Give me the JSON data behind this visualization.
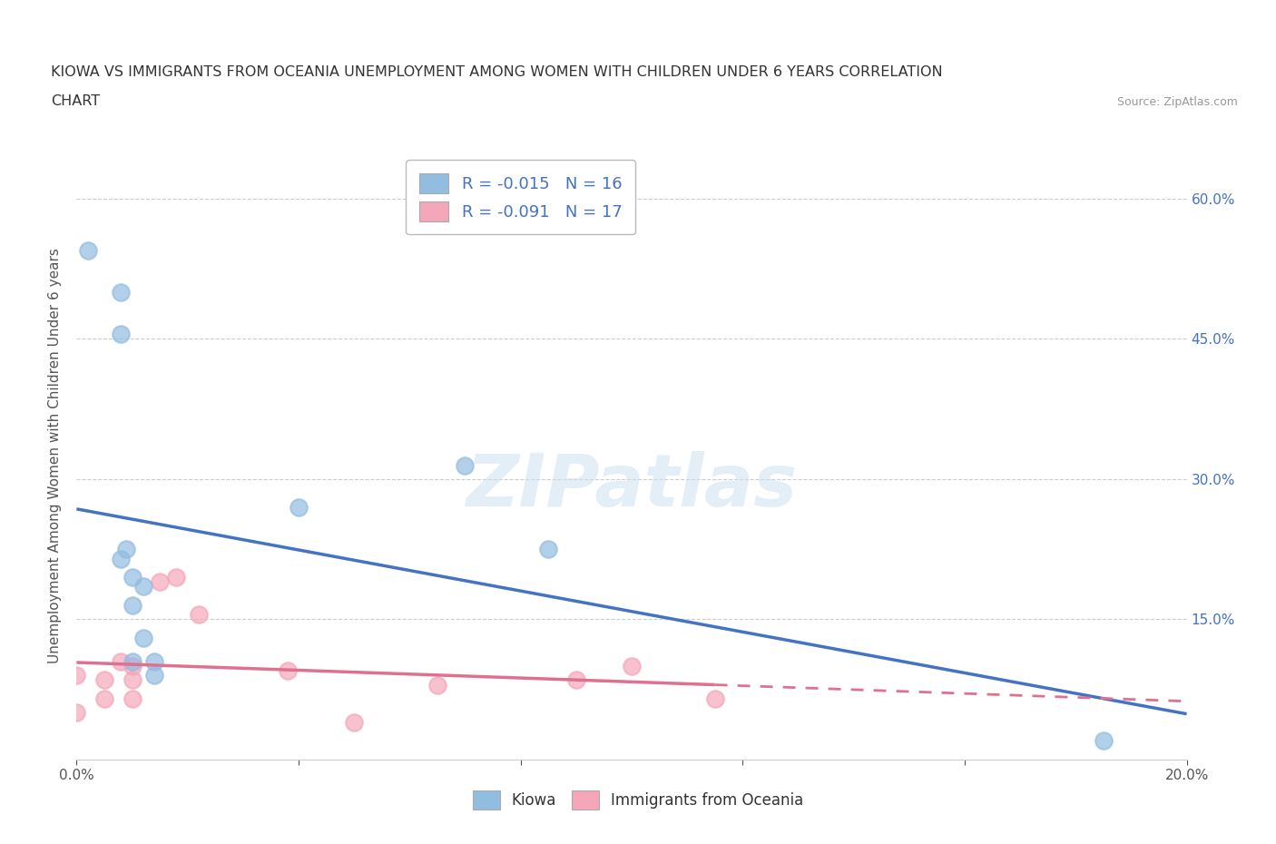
{
  "title_line1": "KIOWA VS IMMIGRANTS FROM OCEANIA UNEMPLOYMENT AMONG WOMEN WITH CHILDREN UNDER 6 YEARS CORRELATION",
  "title_line2": "CHART",
  "source": "Source: ZipAtlas.com",
  "ylabel": "Unemployment Among Women with Children Under 6 years",
  "xlim": [
    0.0,
    0.2
  ],
  "ylim": [
    0.0,
    0.65
  ],
  "xticks": [
    0.0,
    0.04,
    0.08,
    0.12,
    0.16,
    0.2
  ],
  "yticks": [
    0.0,
    0.15,
    0.3,
    0.45,
    0.6
  ],
  "kiowa_color": "#92bce0",
  "immigrants_color": "#f4a7b9",
  "kiowa_R": -0.015,
  "kiowa_N": 16,
  "immigrants_R": -0.091,
  "immigrants_N": 17,
  "kiowa_x": [
    0.002,
    0.008,
    0.008,
    0.008,
    0.009,
    0.01,
    0.01,
    0.01,
    0.012,
    0.012,
    0.014,
    0.014,
    0.04,
    0.07,
    0.085,
    0.185
  ],
  "kiowa_y": [
    0.545,
    0.5,
    0.455,
    0.215,
    0.225,
    0.195,
    0.165,
    0.105,
    0.185,
    0.13,
    0.105,
    0.09,
    0.27,
    0.315,
    0.225,
    0.02
  ],
  "immigrants_x": [
    0.0,
    0.0,
    0.005,
    0.005,
    0.008,
    0.01,
    0.01,
    0.01,
    0.015,
    0.018,
    0.022,
    0.038,
    0.05,
    0.065,
    0.09,
    0.1,
    0.115
  ],
  "immigrants_y": [
    0.09,
    0.05,
    0.085,
    0.065,
    0.105,
    0.1,
    0.085,
    0.065,
    0.19,
    0.195,
    0.155,
    0.095,
    0.04,
    0.08,
    0.085,
    0.1,
    0.065
  ],
  "watermark": "ZIPatlas",
  "background_color": "#ffffff",
  "grid_color": "#cccccc",
  "trendline_kiowa_color": "#4472c4",
  "trendline_immigrants_color": "#e07090"
}
